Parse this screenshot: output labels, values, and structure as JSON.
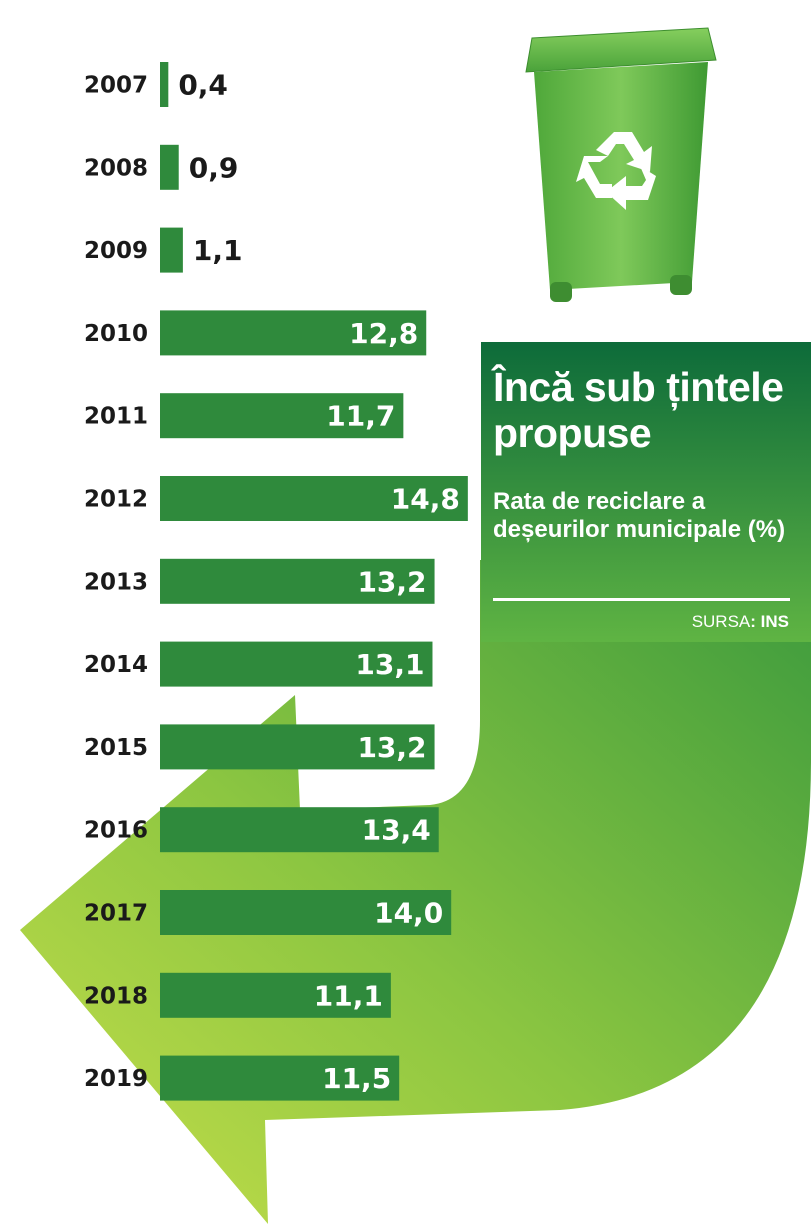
{
  "title": "Încă sub țintele propuse",
  "subtitle": "Rata de reciclare a deșeurilor municipale (%)",
  "source_label": "SURSA",
  "source_value": "INS",
  "icon": "recycle-bin-icon",
  "colors": {
    "bar": "#2f8a3c",
    "title_bg_dark": "#0d6b3a",
    "title_bg_light": "#5fb443",
    "arrow_light": "#b9d843",
    "arrow_dark": "#3f9b3b"
  },
  "chart_data": {
    "type": "bar",
    "orientation": "horizontal",
    "title": "Încă sub țintele propuse",
    "subtitle": "Rata de reciclare a deșeurilor municipale (%)",
    "categories": [
      "2007",
      "2008",
      "2009",
      "2010",
      "2011",
      "2012",
      "2013",
      "2014",
      "2015",
      "2016",
      "2017",
      "2018",
      "2019"
    ],
    "values": [
      0.4,
      0.9,
      1.1,
      12.8,
      11.7,
      14.8,
      13.2,
      13.1,
      13.2,
      13.4,
      14.0,
      11.1,
      11.5
    ],
    "value_labels": [
      "0,4",
      "0,9",
      "1,1",
      "12,8",
      "11,7",
      "14,8",
      "13,2",
      "13,1",
      "13,2",
      "13,4",
      "14,0",
      "11,1",
      "11,5"
    ],
    "xlabel": "",
    "ylabel": "",
    "grid": false,
    "legend": "none"
  }
}
